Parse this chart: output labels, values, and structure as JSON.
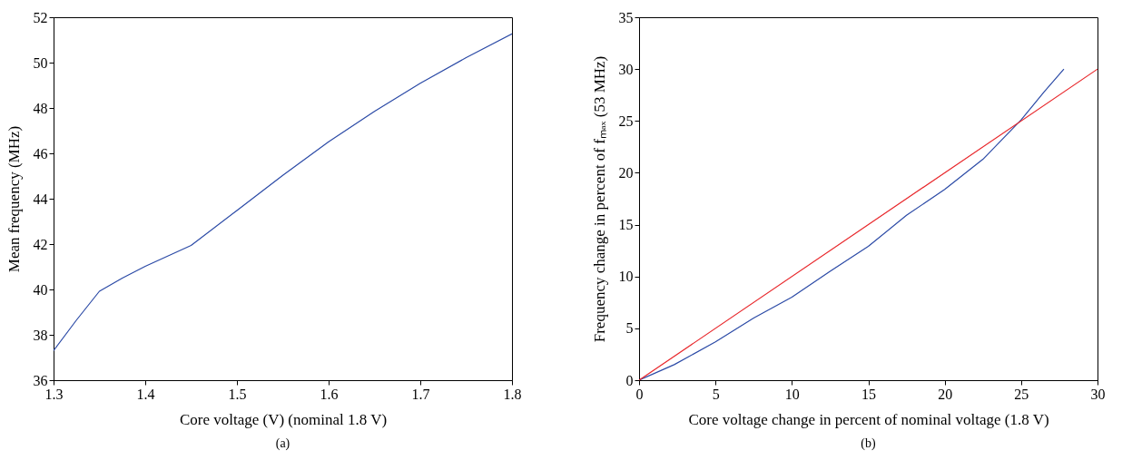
{
  "chart_data": [
    {
      "type": "line",
      "xlabel": "Core voltage  (V) (nominal 1.8 V)",
      "ylabel": "Mean frequency (MHz)",
      "annotations": [
        "(a)"
      ],
      "xlim": [
        1.3,
        1.8
      ],
      "xticks": [
        1.3,
        1.4,
        1.5,
        1.6,
        1.7,
        1.8
      ],
      "ylim": [
        36,
        52
      ],
      "yticks": [
        36,
        38,
        40,
        42,
        44,
        46,
        48,
        50,
        52
      ],
      "series": [
        {
          "color": "#2b4aa6",
          "x": [
            1.3,
            1.325,
            1.35,
            1.375,
            1.4,
            1.45,
            1.5,
            1.55,
            1.6,
            1.65,
            1.7,
            1.75,
            1.8
          ],
          "values": [
            37.3,
            38.65,
            39.92,
            40.5,
            41.02,
            41.94,
            43.48,
            45.03,
            46.51,
            47.85,
            49.09,
            50.22,
            51.27
          ]
        }
      ]
    },
    {
      "type": "line",
      "xlabel": "Core voltage change in percent of nominal voltage (1.8 V)",
      "ylabel": "Frequency change in percent of fₘₐₓ (53 MHz)",
      "annotations": [
        "(b)"
      ],
      "xlim": [
        0,
        30
      ],
      "xticks": [
        0,
        5,
        10,
        15,
        20,
        25,
        30
      ],
      "ylim": [
        0,
        35
      ],
      "yticks": [
        0,
        5,
        10,
        15,
        20,
        25,
        30,
        35
      ],
      "series": [
        {
          "color": "#2b4aa6",
          "x": [
            0,
            2.3,
            5,
            7.5,
            10,
            12.5,
            15,
            17.5,
            20,
            22.5,
            25,
            26.5,
            27.8
          ],
          "values": [
            0,
            1.5,
            3.7,
            6.0,
            8.0,
            10.5,
            12.9,
            15.9,
            18.4,
            21.3,
            25.1,
            27.8,
            30.0
          ]
        },
        {
          "color": "#e8262a",
          "x": [
            0,
            30
          ],
          "values": [
            0,
            30
          ]
        }
      ]
    }
  ]
}
